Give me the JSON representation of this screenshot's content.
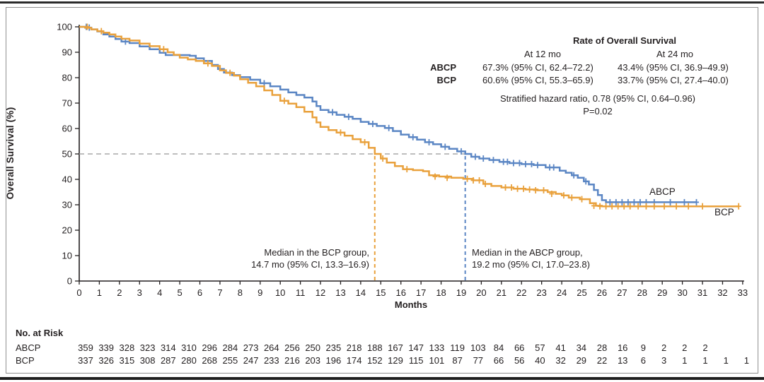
{
  "chart_data": {
    "type": "line",
    "subtype": "kaplan-meier-step",
    "title": "",
    "xlabel": "Months",
    "ylabel": "Overall Survival (%)",
    "xlim": [
      0,
      33
    ],
    "ylim": [
      0,
      100
    ],
    "x_ticks": [
      0,
      1,
      2,
      3,
      4,
      5,
      6,
      7,
      8,
      9,
      10,
      11,
      12,
      13,
      14,
      15,
      16,
      17,
      18,
      19,
      20,
      21,
      22,
      23,
      24,
      25,
      26,
      27,
      28,
      29,
      30,
      31,
      32,
      33
    ],
    "y_ticks": [
      0,
      10,
      20,
      30,
      40,
      50,
      60,
      70,
      80,
      90,
      100
    ],
    "grid": false,
    "reference_line_pct": 50,
    "reference_line_color": "#a8a8a8",
    "series": [
      {
        "name": "ABCP",
        "color": "#5b86c4",
        "median_months": 19.2,
        "rate_12mo_pct": 67.3,
        "rate_24mo_pct": 43.4,
        "points": [
          [
            0,
            100
          ],
          [
            0.3,
            99.7
          ],
          [
            0.6,
            99
          ],
          [
            0.9,
            98.2
          ],
          [
            1.2,
            97
          ],
          [
            1.5,
            96.2
          ],
          [
            1.8,
            95.2
          ],
          [
            2.1,
            94.2
          ],
          [
            2.5,
            93.6
          ],
          [
            3,
            92.3
          ],
          [
            3.5,
            91.2
          ],
          [
            4,
            89.8
          ],
          [
            4.3,
            88.9
          ],
          [
            5.5,
            88.6
          ],
          [
            5.8,
            87.6
          ],
          [
            6.2,
            86.6
          ],
          [
            6.6,
            85
          ],
          [
            6.9,
            83.4
          ],
          [
            7.2,
            82
          ],
          [
            7.6,
            81
          ],
          [
            8,
            80.2
          ],
          [
            8.5,
            79.2
          ],
          [
            9,
            77.8
          ],
          [
            9.5,
            76.6
          ],
          [
            10,
            75.3
          ],
          [
            10.4,
            74.2
          ],
          [
            10.8,
            73.2
          ],
          [
            11.2,
            72.2
          ],
          [
            11.6,
            70.6
          ],
          [
            11.8,
            68.8
          ],
          [
            12,
            67.3
          ],
          [
            12.4,
            66.4
          ],
          [
            12.8,
            65.4
          ],
          [
            13.2,
            64.6
          ],
          [
            13.6,
            63.8
          ],
          [
            14,
            62.6
          ],
          [
            14.4,
            61.8
          ],
          [
            14.8,
            61
          ],
          [
            15.2,
            60.2
          ],
          [
            15.6,
            59
          ],
          [
            16,
            57.6
          ],
          [
            16.4,
            56.6
          ],
          [
            16.8,
            55.6
          ],
          [
            17.2,
            54.6
          ],
          [
            17.6,
            53.8
          ],
          [
            18,
            52.8
          ],
          [
            18.4,
            52
          ],
          [
            18.8,
            51
          ],
          [
            19.2,
            50
          ],
          [
            19.5,
            48.9
          ],
          [
            19.9,
            48.2
          ],
          [
            20.4,
            47.6
          ],
          [
            20.9,
            46.9
          ],
          [
            21.4,
            46.4
          ],
          [
            22,
            46
          ],
          [
            22.6,
            45.6
          ],
          [
            23.2,
            44.7
          ],
          [
            23.9,
            43.4
          ],
          [
            24.2,
            42.6
          ],
          [
            24.5,
            41.6
          ],
          [
            24.8,
            40.6
          ],
          [
            25.1,
            39.2
          ],
          [
            25.35,
            38
          ],
          [
            25.6,
            35.8
          ],
          [
            25.8,
            33.8
          ],
          [
            26,
            31.8
          ],
          [
            26.2,
            31
          ],
          [
            26.6,
            31
          ],
          [
            30.7,
            31
          ]
        ],
        "censor_marks": [
          [
            0.35,
            100
          ],
          [
            0.5,
            99.7
          ],
          [
            2.3,
            94.2
          ],
          [
            9.2,
            77.8
          ],
          [
            12.6,
            66.4
          ],
          [
            13.4,
            64.6
          ],
          [
            14.6,
            61.8
          ],
          [
            15.4,
            60.2
          ],
          [
            16.6,
            56.6
          ],
          [
            17.4,
            54.6
          ],
          [
            18.2,
            52.8
          ],
          [
            19,
            51
          ],
          [
            19.7,
            48.9
          ],
          [
            20.1,
            48.2
          ],
          [
            20.6,
            47.6
          ],
          [
            21.1,
            46.9
          ],
          [
            21.3,
            46.9
          ],
          [
            21.6,
            46.4
          ],
          [
            21.9,
            46.4
          ],
          [
            22.2,
            46
          ],
          [
            22.5,
            46
          ],
          [
            22.8,
            45.6
          ],
          [
            23.4,
            44.7
          ],
          [
            23.6,
            44.7
          ],
          [
            24.6,
            41.6
          ],
          [
            25.2,
            39.2
          ],
          [
            26.4,
            31
          ],
          [
            26.7,
            31
          ],
          [
            27,
            31
          ],
          [
            27.3,
            31
          ],
          [
            27.6,
            31
          ],
          [
            27.9,
            31
          ],
          [
            28.2,
            31
          ],
          [
            28.6,
            31
          ],
          [
            29.4,
            31
          ],
          [
            30.1,
            31
          ],
          [
            30.7,
            31
          ]
        ]
      },
      {
        "name": "BCP",
        "color": "#e9a13c",
        "median_months": 14.7,
        "rate_12mo_pct": 60.6,
        "rate_24mo_pct": 33.7,
        "points": [
          [
            0,
            100
          ],
          [
            0.3,
            99.6
          ],
          [
            0.6,
            99
          ],
          [
            0.9,
            98.3
          ],
          [
            1.2,
            97.7
          ],
          [
            1.5,
            97
          ],
          [
            1.8,
            96.2
          ],
          [
            2.1,
            95.3
          ],
          [
            2.5,
            94.6
          ],
          [
            3,
            93.4
          ],
          [
            3.5,
            92.4
          ],
          [
            4,
            91.2
          ],
          [
            4.4,
            90
          ],
          [
            4.7,
            89
          ],
          [
            5,
            87.9
          ],
          [
            5.4,
            87.2
          ],
          [
            5.8,
            86.6
          ],
          [
            6.2,
            85.6
          ],
          [
            6.6,
            84.6
          ],
          [
            7,
            82.9
          ],
          [
            7.3,
            81.9
          ],
          [
            7.7,
            80.8
          ],
          [
            8,
            79.4
          ],
          [
            8.4,
            78
          ],
          [
            8.8,
            76.6
          ],
          [
            9.2,
            75
          ],
          [
            9.6,
            73.2
          ],
          [
            10,
            70.9
          ],
          [
            10.4,
            69.8
          ],
          [
            10.8,
            68.4
          ],
          [
            11.2,
            66.6
          ],
          [
            11.6,
            64.4
          ],
          [
            11.8,
            62.4
          ],
          [
            12,
            60.6
          ],
          [
            12.4,
            59.4
          ],
          [
            12.8,
            58.4
          ],
          [
            13.2,
            57.2
          ],
          [
            13.6,
            55.8
          ],
          [
            14,
            54.6
          ],
          [
            14.4,
            52.4
          ],
          [
            14.7,
            50
          ],
          [
            15,
            48.2
          ],
          [
            15.3,
            46.6
          ],
          [
            15.7,
            45.2
          ],
          [
            16.1,
            44
          ],
          [
            16.6,
            43.6
          ],
          [
            17.1,
            43.2
          ],
          [
            17.4,
            41.6
          ],
          [
            17.9,
            41.1
          ],
          [
            18.5,
            40.6
          ],
          [
            19.1,
            40.2
          ],
          [
            19.6,
            39.6
          ],
          [
            20.1,
            38.2
          ],
          [
            20.5,
            37.4
          ],
          [
            21,
            36.8
          ],
          [
            21.6,
            36.3
          ],
          [
            22.2,
            36
          ],
          [
            22.8,
            35.7
          ],
          [
            23.3,
            35
          ],
          [
            23.7,
            34.3
          ],
          [
            24,
            33.7
          ],
          [
            24.35,
            32.8
          ],
          [
            24.9,
            32.2
          ],
          [
            25.4,
            30.6
          ],
          [
            25.7,
            29.6
          ],
          [
            26,
            29.4
          ],
          [
            32.8,
            29.4
          ]
        ],
        "censor_marks": [
          [
            0.4,
            100
          ],
          [
            1.1,
            98.3
          ],
          [
            4.2,
            91.2
          ],
          [
            6.4,
            85.6
          ],
          [
            7.5,
            81.9
          ],
          [
            10.2,
            70.9
          ],
          [
            13,
            58.4
          ],
          [
            14.2,
            54.6
          ],
          [
            15.1,
            48.2
          ],
          [
            16.3,
            44
          ],
          [
            17.7,
            41.1
          ],
          [
            18.3,
            40.6
          ],
          [
            19.3,
            40.2
          ],
          [
            19.6,
            39.6
          ],
          [
            19.9,
            39.6
          ],
          [
            20.2,
            38.2
          ],
          [
            21.2,
            36.8
          ],
          [
            21.5,
            36.8
          ],
          [
            21.8,
            36.3
          ],
          [
            22.1,
            36.3
          ],
          [
            22.4,
            36
          ],
          [
            22.7,
            35.7
          ],
          [
            23.1,
            35.7
          ],
          [
            23.5,
            34.3
          ],
          [
            24.1,
            33.7
          ],
          [
            24.5,
            32.8
          ],
          [
            25,
            32.2
          ],
          [
            25.6,
            29.6
          ],
          [
            25.9,
            29.4
          ],
          [
            26.2,
            29.4
          ],
          [
            26.5,
            29.4
          ],
          [
            26.8,
            29.4
          ],
          [
            27.1,
            29.4
          ],
          [
            27.4,
            29.4
          ],
          [
            27.8,
            29.4
          ],
          [
            28.2,
            29.4
          ],
          [
            28.6,
            29.4
          ],
          [
            29.1,
            29.4
          ],
          [
            29.7,
            29.4
          ],
          [
            30.3,
            29.4
          ],
          [
            31,
            29.4
          ],
          [
            32.8,
            29.4
          ]
        ]
      }
    ]
  },
  "axis": {
    "x_label": "Months",
    "y_label": "Overall Survival (%)"
  },
  "stats_panel": {
    "title": "Rate of Overall Survival",
    "col_headers": [
      "At 12 mo",
      "At 24 mo"
    ],
    "rows": [
      {
        "label": "ABCP",
        "at_12_mo": "67.3% (95% CI, 62.4–72.2)",
        "at_24_mo": "43.4% (95% CI, 36.9–49.9)"
      },
      {
        "label": "BCP",
        "at_12_mo": "60.6% (95% CI, 55.3–65.9)",
        "at_24_mo": "33.7% (95% CI, 27.4–40.0)"
      }
    ],
    "hazard_ratio_line": "Stratified hazard ratio, 0.78 (95% CI, 0.64–0.96)",
    "p_value_line": "P=0.02"
  },
  "median_annotations": {
    "bcp_line1": "Median in the BCP group,",
    "bcp_line2": "14.7 mo (95% CI, 13.3–16.9)",
    "abcp_line1": "Median in the ABCP group,",
    "abcp_line2": "19.2 mo (95% CI, 17.0–23.8)"
  },
  "curve_labels": {
    "abcp": "ABCP",
    "bcp": "BCP"
  },
  "risk_table": {
    "title": "No. at Risk",
    "rows": [
      {
        "label": "ABCP",
        "values": [
          359,
          339,
          328,
          323,
          314,
          310,
          296,
          284,
          273,
          264,
          256,
          250,
          235,
          218,
          188,
          167,
          147,
          133,
          119,
          103,
          84,
          66,
          57,
          41,
          34,
          28,
          16,
          9,
          2,
          2,
          2
        ]
      },
      {
        "label": "BCP",
        "values": [
          337,
          326,
          315,
          308,
          287,
          280,
          268,
          255,
          247,
          233,
          216,
          203,
          196,
          174,
          152,
          129,
          115,
          101,
          87,
          77,
          66,
          56,
          40,
          32,
          29,
          22,
          13,
          6,
          3,
          1,
          1,
          1,
          1
        ]
      }
    ]
  }
}
